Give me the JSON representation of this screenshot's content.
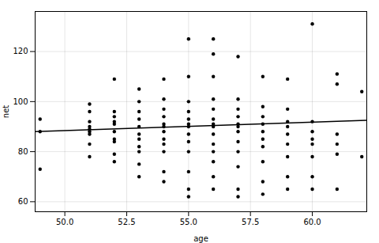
{
  "chart_data": {
    "type": "scatter",
    "xlabel": "age",
    "ylabel": "net",
    "xlim": [
      48.8,
      62.2
    ],
    "ylim": [
      56,
      136
    ],
    "xticks": [
      {
        "value": 50.0,
        "label": "50.0"
      },
      52.5,
      {
        "value": 55.0,
        "label": "55.0"
      },
      57.5,
      {
        "value": 60.0,
        "label": "60.0"
      }
    ],
    "yticks": [
      60,
      80,
      100,
      120
    ],
    "grid": true,
    "series": [
      {
        "type": "scatter",
        "color": "#000000",
        "marker": "circle",
        "x": [
          49,
          49,
          49,
          51,
          51,
          51,
          51,
          51,
          51,
          51,
          51,
          51,
          52,
          52,
          52,
          52,
          52,
          52,
          52,
          52,
          52,
          52,
          53,
          53,
          53,
          53,
          53,
          53,
          53,
          53,
          53,
          53,
          53,
          54,
          54,
          54,
          54,
          54,
          54,
          54,
          54,
          54,
          54,
          54,
          54,
          55,
          55,
          55,
          55,
          55,
          55,
          55,
          55,
          55,
          55,
          55,
          55,
          55,
          56,
          56,
          56,
          56,
          56,
          56,
          56,
          56,
          56,
          56,
          56,
          56,
          56,
          56,
          57,
          57,
          57,
          57,
          57,
          57,
          57,
          57,
          57,
          57,
          57,
          57,
          58,
          58,
          58,
          58,
          58,
          58,
          58,
          58,
          58,
          58,
          59,
          59,
          59,
          59,
          59,
          59,
          59,
          59,
          59,
          60,
          60,
          60,
          60,
          60,
          60,
          60,
          60,
          61,
          61,
          61,
          61,
          61,
          61,
          62,
          62
        ],
        "values": [
          73,
          88,
          93,
          78,
          83,
          87,
          88,
          89,
          90,
          92,
          96,
          99,
          76,
          79,
          84,
          85,
          88,
          91,
          92,
          94,
          96,
          109,
          70,
          75,
          80,
          82,
          85,
          87,
          90,
          93,
          96,
          100,
          105,
          68,
          72,
          80,
          83,
          85,
          88,
          90,
          91,
          94,
          97,
          101,
          109,
          62,
          65,
          72,
          80,
          84,
          87,
          90,
          91,
          93,
          96,
          100,
          110,
          125,
          65,
          70,
          76,
          80,
          83,
          87,
          90,
          91,
          93,
          97,
          101,
          110,
          119,
          125,
          62,
          65,
          74,
          80,
          84,
          88,
          90,
          91,
          94,
          97,
          101,
          118,
          63,
          68,
          76,
          82,
          85,
          88,
          91,
          94,
          98,
          110,
          65,
          70,
          78,
          83,
          87,
          90,
          92,
          97,
          109,
          65,
          70,
          78,
          83,
          85,
          88,
          92,
          131,
          65,
          79,
          83,
          87,
          107,
          111,
          78,
          104
        ]
      },
      {
        "type": "line",
        "color": "#000000",
        "line_style": "solid",
        "x": [
          48.8,
          62.2
        ],
        "values": [
          88.0,
          92.5
        ]
      }
    ]
  }
}
